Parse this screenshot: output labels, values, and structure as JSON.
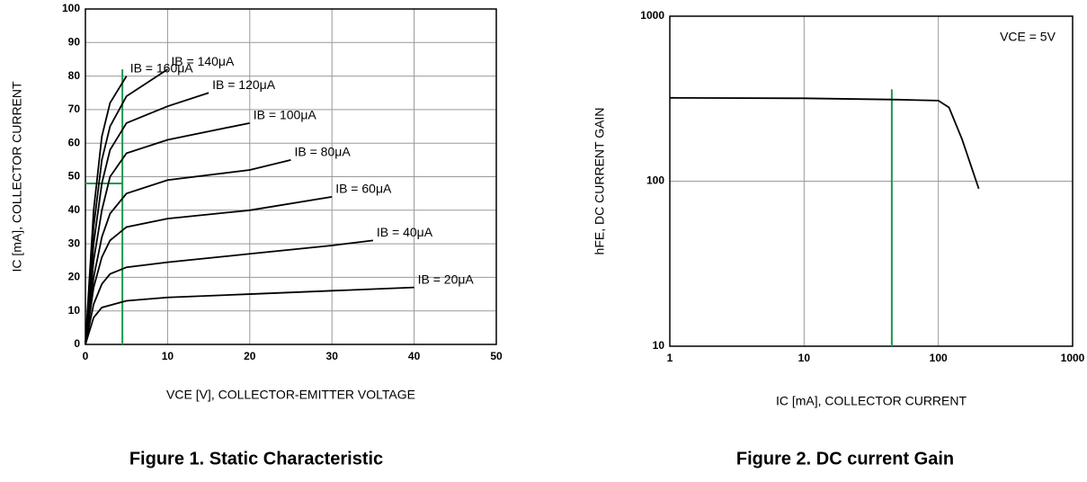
{
  "chart_data": [
    {
      "type": "line",
      "title": "Figure 1. Static Characteristic",
      "x_label": "VCE [V], COLLECTOR-EMITTER VOLTAGE",
      "y_label": "IC [mA], COLLECTOR CURRENT",
      "xlim": [
        0,
        50
      ],
      "ylim": [
        0,
        100
      ],
      "xticks": [
        0,
        10,
        20,
        30,
        40,
        50
      ],
      "yticks": [
        0,
        10,
        20,
        30,
        40,
        50,
        60,
        70,
        80,
        90,
        100
      ],
      "grid": true,
      "log_scale": false,
      "series": [
        {
          "name": "IB = 160μA",
          "color": "#000000",
          "x": [
            0,
            1,
            2,
            3,
            5
          ],
          "values": [
            0,
            40,
            62,
            72,
            80
          ]
        },
        {
          "name": "IB = 140μA",
          "color": "#000000",
          "x": [
            0,
            1,
            2,
            3,
            5,
            10
          ],
          "values": [
            0,
            35,
            55,
            65,
            74,
            82
          ]
        },
        {
          "name": "IB = 120μA",
          "color": "#000000",
          "x": [
            0,
            1,
            2,
            3,
            5,
            10,
            15
          ],
          "values": [
            0,
            30,
            48,
            58,
            66,
            71,
            75
          ]
        },
        {
          "name": "IB = 100μA",
          "color": "#000000",
          "x": [
            0,
            1,
            2,
            3,
            5,
            10,
            15,
            20
          ],
          "values": [
            0,
            25,
            40,
            50,
            57,
            61,
            63.5,
            66
          ]
        },
        {
          "name": "IB = 80μA",
          "color": "#000000",
          "x": [
            0,
            1,
            2,
            3,
            5,
            10,
            20,
            25
          ],
          "values": [
            0,
            20,
            32,
            39,
            45,
            49,
            52,
            55
          ]
        },
        {
          "name": "IB = 60μA",
          "color": "#000000",
          "x": [
            0,
            1,
            2,
            3,
            5,
            10,
            20,
            30
          ],
          "values": [
            0,
            17,
            26,
            31,
            35,
            37.5,
            40,
            44
          ]
        },
        {
          "name": "IB = 40μA",
          "color": "#000000",
          "x": [
            0,
            1,
            2,
            3,
            5,
            10,
            20,
            30,
            35
          ],
          "values": [
            0,
            12,
            18,
            21,
            23,
            24.5,
            27,
            29.5,
            31
          ]
        },
        {
          "name": "IB = 20μA",
          "color": "#000000",
          "x": [
            0,
            1,
            2,
            5,
            10,
            20,
            30,
            40
          ],
          "values": [
            0,
            8,
            11,
            13,
            14,
            15,
            16,
            17
          ]
        }
      ],
      "guides": [
        {
          "x": [
            4.5,
            4.5
          ],
          "y": [
            0,
            82
          ]
        },
        {
          "x": [
            0,
            4.5
          ],
          "y": [
            48,
            48
          ]
        }
      ],
      "guide_color": "#1a9850"
    },
    {
      "type": "line",
      "title": "Figure 2. DC current Gain",
      "x_label": "IC [mA], COLLECTOR CURRENT",
      "y_label": "hFE, DC CURRENT GAIN",
      "annotation": "VCE = 5V",
      "xlim": [
        1,
        1000
      ],
      "ylim": [
        10,
        1000
      ],
      "xticks": [
        1,
        10,
        100,
        1000
      ],
      "yticks": [
        10,
        100,
        1000
      ],
      "grid": true,
      "log_scale": true,
      "series": [
        {
          "name": "hFE",
          "color": "#000000",
          "x": [
            1,
            10,
            50,
            100,
            120,
            150,
            200
          ],
          "values": [
            320,
            318,
            312,
            308,
            280,
            180,
            90
          ]
        }
      ],
      "guides": [
        {
          "x": [
            45,
            45
          ],
          "y": [
            10,
            360
          ]
        }
      ],
      "guide_color": "#1a9850"
    }
  ]
}
